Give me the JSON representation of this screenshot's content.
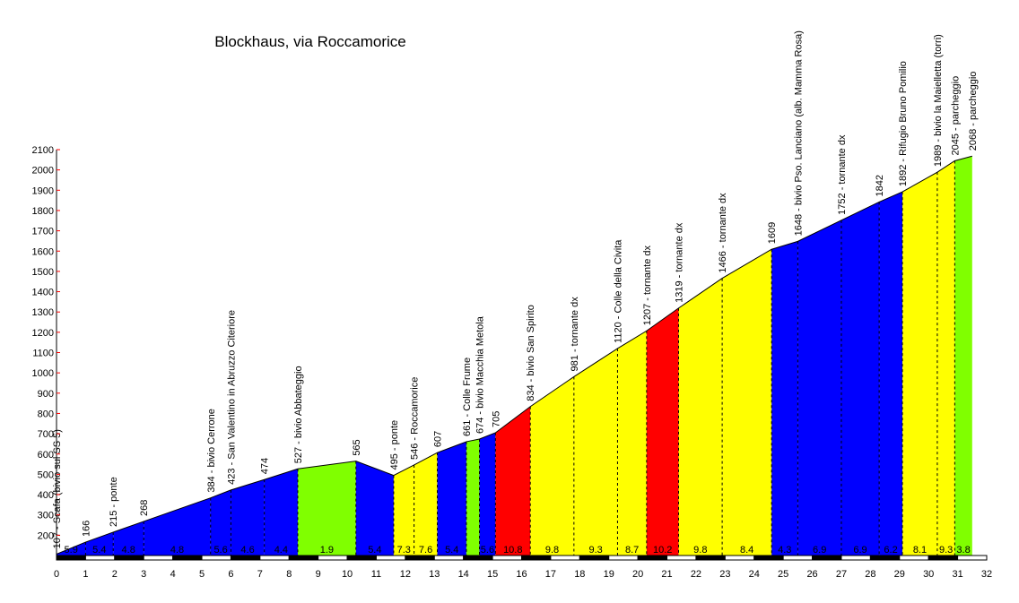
{
  "chart_data": {
    "type": "area",
    "title": "Blockhaus, via Roccamorice",
    "xlabel": "",
    "ylabel": "",
    "xlim": [
      0,
      32
    ],
    "ylim": [
      100,
      2100
    ],
    "x_ticks": [
      0,
      1,
      2,
      3,
      4,
      5,
      6,
      7,
      8,
      9,
      10,
      11,
      12,
      13,
      14,
      15,
      16,
      17,
      18,
      19,
      20,
      21,
      22,
      23,
      24,
      25,
      26,
      27,
      28,
      29,
      30,
      31,
      32
    ],
    "y_ticks": [
      200,
      300,
      400,
      500,
      600,
      700,
      800,
      900,
      1000,
      1100,
      1200,
      1300,
      1400,
      1500,
      1600,
      1700,
      1800,
      1900,
      2000,
      2100
    ],
    "grid": false,
    "points": [
      {
        "km": 0.0,
        "alt": 107,
        "label": "107 - Scafa (bivio sul SS 5)"
      },
      {
        "km": 1.0,
        "alt": 166,
        "label": "166"
      },
      {
        "km": 1.95,
        "alt": 215,
        "label": "215 - ponte"
      },
      {
        "km": 3.0,
        "alt": 268,
        "label": "268"
      },
      {
        "km": 5.3,
        "alt": 384,
        "label": "384 - bivio Cerrone"
      },
      {
        "km": 6.0,
        "alt": 423,
        "label": "423 - San Valentino in Abruzzo Citeriore"
      },
      {
        "km": 7.15,
        "alt": 474,
        "label": "474"
      },
      {
        "km": 8.3,
        "alt": 527,
        "label": "527 - bivio Abbateggio"
      },
      {
        "km": 10.3,
        "alt": 565,
        "label": "565"
      },
      {
        "km": 11.6,
        "alt": 495,
        "label": "495 - ponte"
      },
      {
        "km": 12.3,
        "alt": 546,
        "label": "546 - Roccamorice"
      },
      {
        "km": 13.1,
        "alt": 607,
        "label": "607"
      },
      {
        "km": 14.1,
        "alt": 661,
        "label": "661 - Colle Frume"
      },
      {
        "km": 14.55,
        "alt": 674,
        "label": "674 - bivio Macchia Metola"
      },
      {
        "km": 15.1,
        "alt": 705,
        "label": "705"
      },
      {
        "km": 16.3,
        "alt": 834,
        "label": "834 - bivio San Spirito"
      },
      {
        "km": 17.8,
        "alt": 981,
        "label": "981 - tornante dx"
      },
      {
        "km": 19.3,
        "alt": 1120,
        "label": "1120 - Colle della Civita"
      },
      {
        "km": 20.3,
        "alt": 1207,
        "label": "1207 - tornante dx"
      },
      {
        "km": 21.4,
        "alt": 1319,
        "label": "1319 - tornante dx"
      },
      {
        "km": 22.9,
        "alt": 1466,
        "label": "1466 - tornante dx"
      },
      {
        "km": 24.6,
        "alt": 1609,
        "label": "1609"
      },
      {
        "km": 25.5,
        "alt": 1648,
        "label": "1648 - bivio Pso. Lanciano (alb. Mamma Rosa)"
      },
      {
        "km": 27.0,
        "alt": 1752,
        "label": "1752 - tornante dx"
      },
      {
        "km": 28.3,
        "alt": 1842,
        "label": "1842"
      },
      {
        "km": 29.1,
        "alt": 1892,
        "label": "1892 - Rifugio Bruno Pomilio"
      },
      {
        "km": 30.3,
        "alt": 1989,
        "label": "1989 - bivio la Maielletta (torri)"
      },
      {
        "km": 30.9,
        "alt": 2045,
        "label": "2045 - parcheggio"
      },
      {
        "km": 31.5,
        "alt": 2068,
        "label": "2068 - parcheggio"
      }
    ],
    "segments": [
      {
        "gradient": "5.9",
        "color": "#0000ff"
      },
      {
        "gradient": "5.4",
        "color": "#0000ff"
      },
      {
        "gradient": "4.8",
        "color": "#0000ff"
      },
      {
        "gradient": "4.8",
        "color": "#0000ff"
      },
      {
        "gradient": "5.6",
        "color": "#0000ff"
      },
      {
        "gradient": "4.6",
        "color": "#0000ff"
      },
      {
        "gradient": "4.4",
        "color": "#0000ff"
      },
      {
        "gradient": "1.9",
        "color": "#80ff00"
      },
      {
        "gradient": "5.4",
        "color": "#0000ff"
      },
      {
        "gradient": "7.3",
        "color": "#ffff00"
      },
      {
        "gradient": "7.6",
        "color": "#ffff00"
      },
      {
        "gradient": "5.4",
        "color": "#0000ff"
      },
      {
        "gradient": "",
        "color": "#80ff00"
      },
      {
        "gradient": "5.6",
        "color": "#0000ff"
      },
      {
        "gradient": "10.8",
        "color": "#ff0000"
      },
      {
        "gradient": "9.8",
        "color": "#ffff00"
      },
      {
        "gradient": "9.3",
        "color": "#ffff00"
      },
      {
        "gradient": "8.7",
        "color": "#ffff00"
      },
      {
        "gradient": "10.2",
        "color": "#ff0000"
      },
      {
        "gradient": "9.8",
        "color": "#ffff00"
      },
      {
        "gradient": "8.4",
        "color": "#ffff00"
      },
      {
        "gradient": "4.3",
        "color": "#0000ff"
      },
      {
        "gradient": "6.9",
        "color": "#0000ff"
      },
      {
        "gradient": "6.9",
        "color": "#0000ff"
      },
      {
        "gradient": "6.2",
        "color": "#0000ff"
      },
      {
        "gradient": "8.1",
        "color": "#ffff00"
      },
      {
        "gradient": "9.3",
        "color": "#ffff00"
      },
      {
        "gradient": "3.8",
        "color": "#80ff00"
      }
    ]
  }
}
